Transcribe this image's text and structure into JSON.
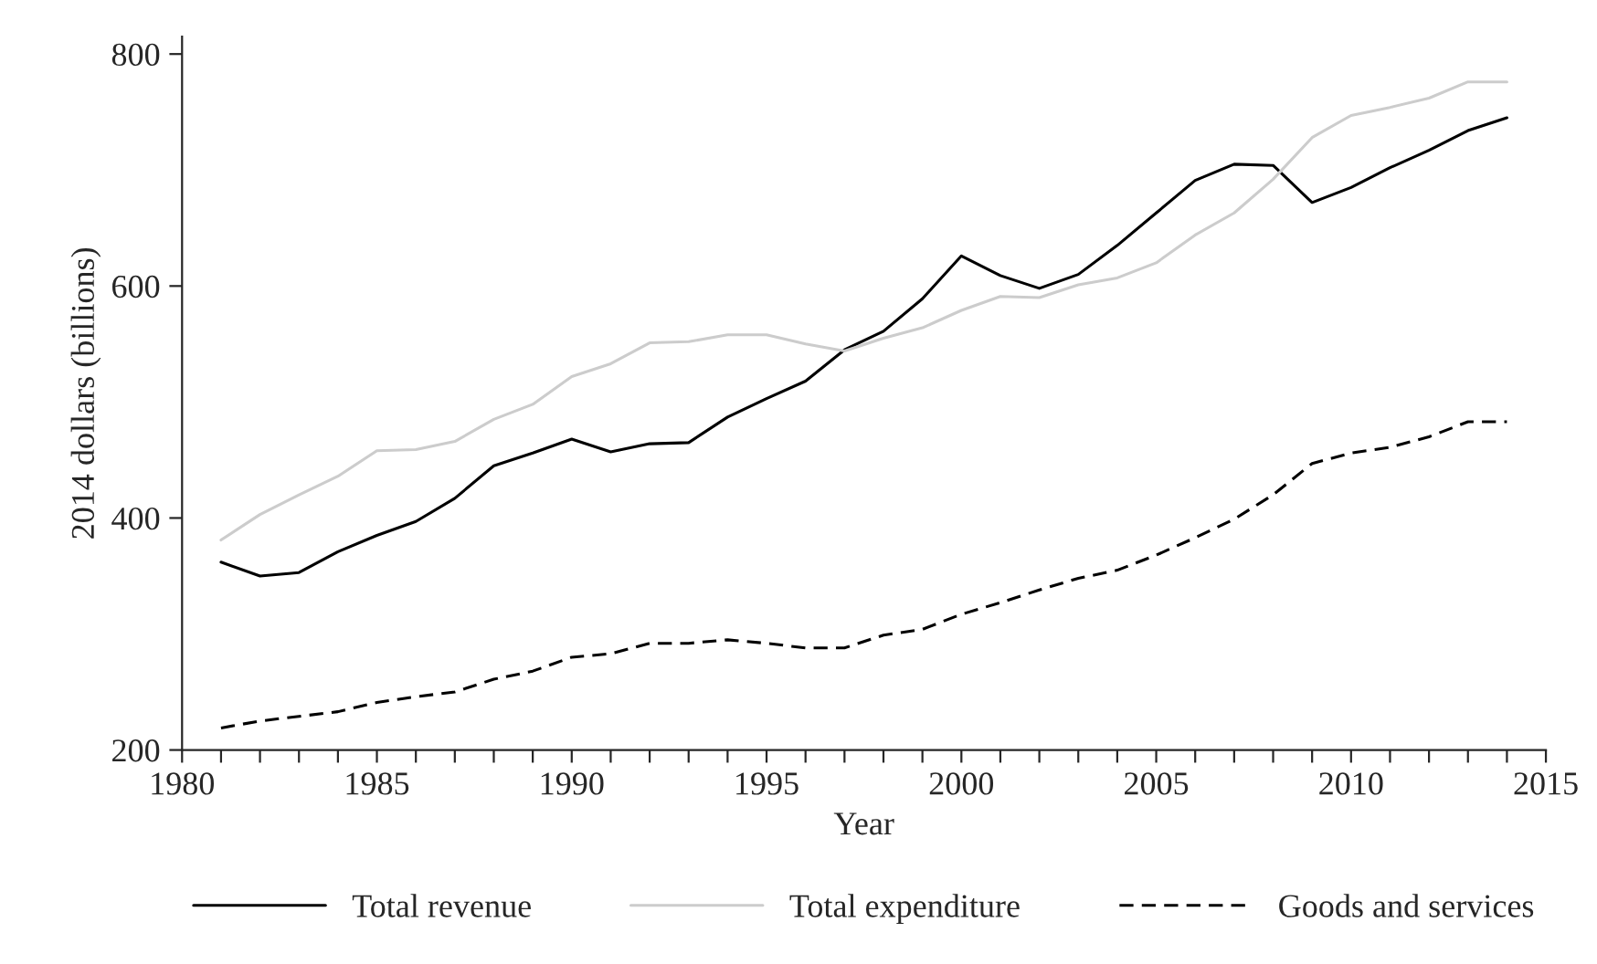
{
  "chart_data": {
    "type": "line",
    "xlabel": "Year",
    "ylabel": "2014 dollars (billions)",
    "x": [
      1981,
      1982,
      1983,
      1984,
      1985,
      1986,
      1987,
      1988,
      1989,
      1990,
      1991,
      1992,
      1993,
      1994,
      1995,
      1996,
      1997,
      1998,
      1999,
      2000,
      2001,
      2002,
      2003,
      2004,
      2005,
      2006,
      2007,
      2008,
      2009,
      2010,
      2011,
      2012,
      2013,
      2014
    ],
    "series": [
      {
        "name": "Total revenue",
        "color": "#000000",
        "line_style": "solid",
        "values": [
          362,
          350,
          353,
          371,
          385,
          397,
          417,
          445,
          456,
          468,
          457,
          464,
          465,
          487,
          503,
          518,
          545,
          561,
          589,
          626,
          609,
          598,
          610,
          635,
          663,
          691,
          705,
          704,
          672,
          685,
          702,
          717,
          734,
          745
        ]
      },
      {
        "name": "Total expenditure",
        "color": "#cccccc",
        "line_style": "solid",
        "values": [
          381,
          403,
          420,
          436,
          458,
          459,
          466,
          485,
          498,
          522,
          533,
          551,
          552,
          558,
          558,
          550,
          544,
          555,
          564,
          579,
          591,
          590,
          601,
          607,
          620,
          644,
          663,
          692,
          728,
          747,
          754,
          762,
          776,
          776
        ]
      },
      {
        "name": "Goods and services",
        "color": "#000000",
        "line_style": "dashed",
        "values": [
          219,
          225,
          229,
          233,
          241,
          246,
          250,
          261,
          268,
          280,
          283,
          292,
          292,
          295,
          292,
          288,
          288,
          299,
          304,
          317,
          327,
          338,
          348,
          355,
          368,
          383,
          399,
          420,
          447,
          456,
          461,
          470,
          483,
          483
        ]
      }
    ],
    "xlim": [
      1980,
      2015
    ],
    "xticks": [
      1980,
      1985,
      1990,
      1995,
      2000,
      2005,
      2010,
      2015
    ],
    "ylim": [
      200,
      815
    ],
    "yticks": [
      200,
      400,
      600,
      800
    ],
    "grid": false,
    "legend": "bottom",
    "marker": "none"
  }
}
